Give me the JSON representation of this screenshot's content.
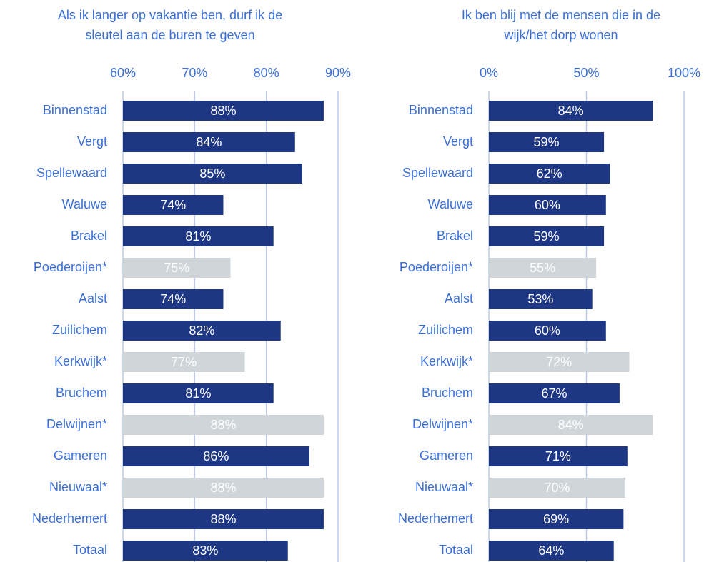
{
  "chart_data": [
    {
      "type": "bar",
      "orientation": "horizontal",
      "title": [
        "Als ik langer op vakantie ben, durf ik de",
        "sleutel aan de buren te geven"
      ],
      "categories": [
        "Binnenstad",
        "Vergt",
        "Spellewaard",
        "Waluwe",
        "Brakel",
        "Poederoijen*",
        "Aalst",
        "Zuilichem",
        "Kerkwijk*",
        "Bruchem",
        "Delwijnen*",
        "Gameren",
        "Nieuwaal*",
        "Nederhemert",
        "Totaal"
      ],
      "values": [
        88,
        84,
        85,
        74,
        81,
        75,
        74,
        82,
        77,
        81,
        88,
        86,
        88,
        88,
        83
      ],
      "value_labels": [
        "88%",
        "84%",
        "85%",
        "74%",
        "81%",
        "75%",
        "74%",
        "82%",
        "77%",
        "81%",
        "88%",
        "86%",
        "88%",
        "88%",
        "83%"
      ],
      "colors": [
        "#1d3784",
        "#1d3784",
        "#1d3784",
        "#1d3784",
        "#1d3784",
        "#cfd5d8",
        "#1d3784",
        "#1d3784",
        "#cfd5d8",
        "#1d3784",
        "#cfd5d8",
        "#1d3784",
        "#cfd5d8",
        "#1d3784",
        "#1d3784"
      ],
      "xlim": [
        60,
        90
      ],
      "xticks": [
        {
          "value": 60,
          "label": "60%"
        },
        {
          "value": 70,
          "label": "70%"
        },
        {
          "value": 80,
          "label": "80%"
        },
        {
          "value": 90,
          "label": "90%"
        }
      ],
      "grid": true
    },
    {
      "type": "bar",
      "orientation": "horizontal",
      "title": [
        "Ik ben blij met de mensen die in de",
        "wijk/het dorp wonen"
      ],
      "categories": [
        "Binnenstad",
        "Vergt",
        "Spellewaard",
        "Waluwe",
        "Brakel",
        "Poederoijen*",
        "Aalst",
        "Zuilichem",
        "Kerkwijk*",
        "Bruchem",
        "Delwijnen*",
        "Gameren",
        "Nieuwaal*",
        "Nederhemert",
        "Totaal"
      ],
      "values": [
        84,
        59,
        62,
        60,
        59,
        55,
        53,
        60,
        72,
        67,
        84,
        71,
        70,
        69,
        64
      ],
      "value_labels": [
        "84%",
        "59%",
        "62%",
        "60%",
        "59%",
        "55%",
        "53%",
        "60%",
        "72%",
        "67%",
        "84%",
        "71%",
        "70%",
        "69%",
        "64%"
      ],
      "colors": [
        "#1d3784",
        "#1d3784",
        "#1d3784",
        "#1d3784",
        "#1d3784",
        "#cfd5d8",
        "#1d3784",
        "#1d3784",
        "#cfd5d8",
        "#1d3784",
        "#cfd5d8",
        "#1d3784",
        "#cfd5d8",
        "#1d3784",
        "#1d3784"
      ],
      "xlim": [
        0,
        100
      ],
      "xticks": [
        {
          "value": 0,
          "label": "0%"
        },
        {
          "value": 50,
          "label": "50%"
        },
        {
          "value": 100,
          "label": "100%"
        }
      ],
      "grid": true
    }
  ]
}
